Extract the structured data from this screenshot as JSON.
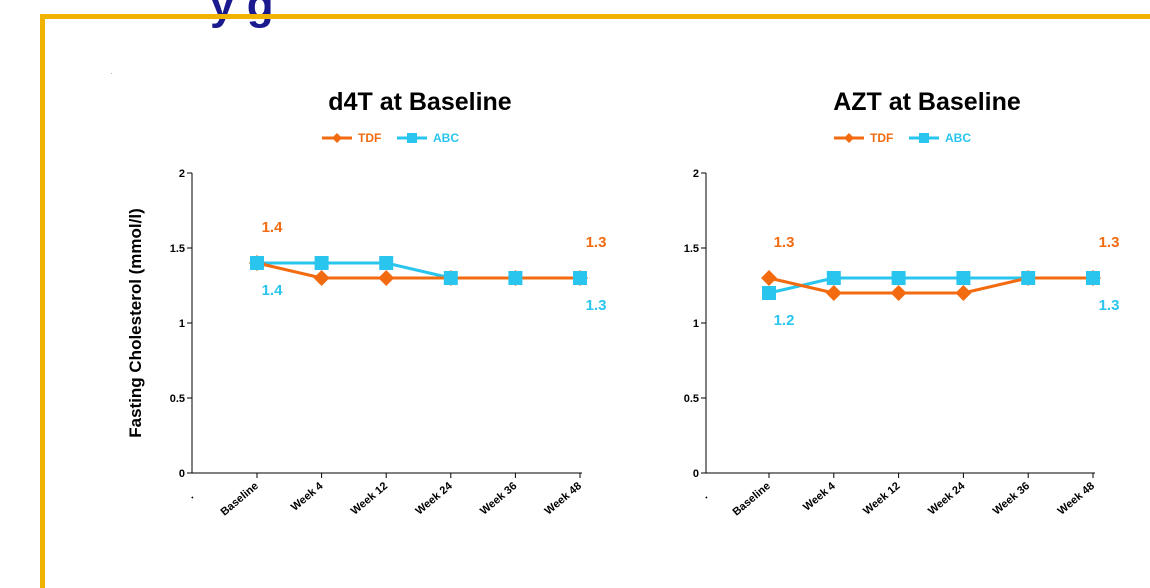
{
  "slide": {
    "title": "y      g",
    "stray_mark": "."
  },
  "colors": {
    "frame": "#f0b400",
    "title": "#1a1a8e",
    "tdf": "#f26b10",
    "abc": "#2ac5ee"
  },
  "chart_data": [
    {
      "type": "line",
      "title": "d4T at Baseline",
      "ylabel": "Fasting Cholesterol  (mmol/l)",
      "xlabel": "",
      "x_origin_label": ".",
      "categories": [
        "Baseline",
        "Week 4",
        "Week 12",
        "Week 24",
        "Week 36",
        "Week 48"
      ],
      "ylim": [
        0,
        2
      ],
      "yticks": [
        0,
        0.5,
        1,
        1.5,
        2
      ],
      "ytick_labels": [
        "0",
        "0.5",
        "1",
        "1.5",
        "2"
      ],
      "legend": "top-center",
      "grid": false,
      "series": [
        {
          "name": "TDF",
          "marker": "diamond",
          "color": "#f26b10",
          "values": [
            1.4,
            1.3,
            1.3,
            1.3,
            1.3,
            1.3
          ]
        },
        {
          "name": "ABC",
          "marker": "square",
          "color": "#2ac5ee",
          "values": [
            1.4,
            1.4,
            1.4,
            1.3,
            1.3,
            1.3
          ]
        }
      ],
      "data_labels": [
        {
          "series": "TDF",
          "category": "Baseline",
          "text": "1.4",
          "position": "above"
        },
        {
          "series": "ABC",
          "category": "Baseline",
          "text": "1.4",
          "position": "below"
        },
        {
          "series": "TDF",
          "category": "Week 48",
          "text": "1.3",
          "position": "above"
        },
        {
          "series": "ABC",
          "category": "Week 48",
          "text": "1.3",
          "position": "below"
        }
      ]
    },
    {
      "type": "line",
      "title": "AZT at Baseline",
      "ylabel": "",
      "xlabel": "",
      "x_origin_label": ".",
      "categories": [
        "Baseline",
        "Week 4",
        "Week 12",
        "Week 24",
        "Week 36",
        "Week 48"
      ],
      "ylim": [
        0,
        2
      ],
      "yticks": [
        0,
        0.5,
        1,
        1.5,
        2
      ],
      "ytick_labels": [
        "0",
        "0.5",
        "1",
        "1.5",
        "2"
      ],
      "legend": "top-center",
      "grid": false,
      "series": [
        {
          "name": "TDF",
          "marker": "diamond",
          "color": "#f26b10",
          "values": [
            1.3,
            1.2,
            1.2,
            1.2,
            1.3,
            1.3
          ]
        },
        {
          "name": "ABC",
          "marker": "square",
          "color": "#2ac5ee",
          "values": [
            1.2,
            1.3,
            1.3,
            1.3,
            1.3,
            1.3
          ]
        }
      ],
      "data_labels": [
        {
          "series": "TDF",
          "category": "Baseline",
          "text": "1.3",
          "position": "above"
        },
        {
          "series": "ABC",
          "category": "Baseline",
          "text": "1.2",
          "position": "below"
        },
        {
          "series": "TDF",
          "category": "Week 48",
          "text": "1.3",
          "position": "above"
        },
        {
          "series": "ABC",
          "category": "Week 48",
          "text": "1.3",
          "position": "below"
        }
      ]
    }
  ]
}
